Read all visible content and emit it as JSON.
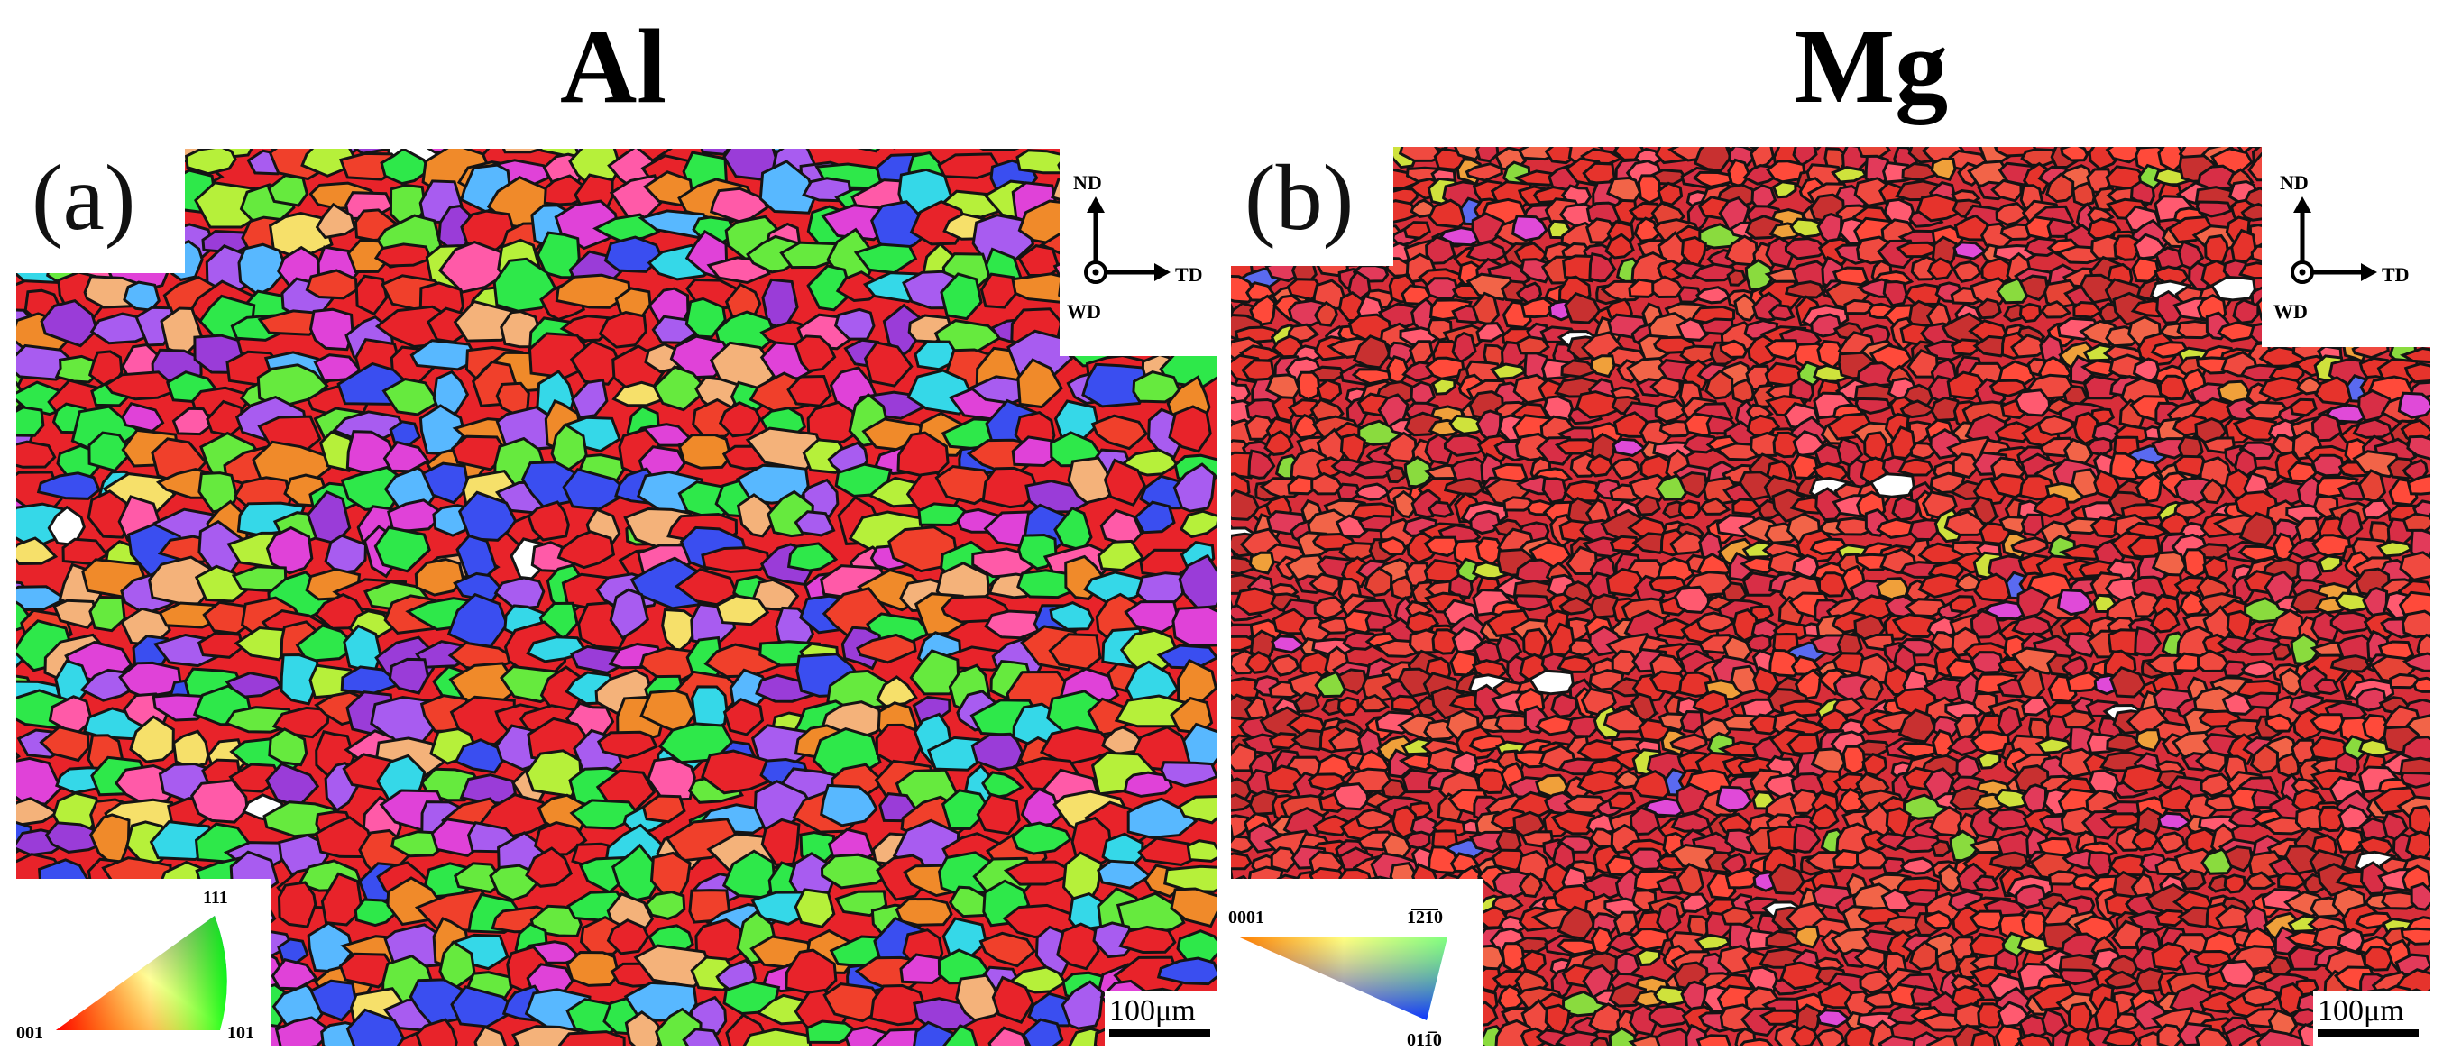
{
  "panels": [
    {
      "id": "a",
      "title": "Al",
      "label": "(a)",
      "axes": {
        "up": "ND",
        "right": "TD",
        "out": "WD"
      },
      "legend": {
        "corner_left": "001",
        "corner_right": "101",
        "corner_top": "111"
      },
      "scale_bar": "100μm",
      "colors": [
        "#e8232a",
        "#f0402b",
        "#2ee84a",
        "#66ea3e",
        "#a85cf0",
        "#e042d8",
        "#35d8e8",
        "#f08a2a",
        "#f4b27a",
        "#3a4ef0",
        "#b6f03a",
        "#ff5aa8",
        "#ffffff",
        "#f6e06a",
        "#9a3cd8",
        "#58b8ff"
      ]
    },
    {
      "id": "b",
      "title": "Mg",
      "label": "(b)",
      "axes": {
        "up": "ND",
        "right": "TD",
        "out": "WD"
      },
      "legend": {
        "corner_left": "0001",
        "corner_right_top": "1̅2̅1̅0",
        "corner_bottom": "011̅0"
      },
      "scale_bar": "100μm",
      "colors": [
        "#e6332c",
        "#f04a40",
        "#d82e46",
        "#ff4a3a",
        "#e23a5a",
        "#f26448",
        "#c83030",
        "#ff5a70",
        "#e64436",
        "#f0a03a",
        "#cfe23c",
        "#8adb3e",
        "#e04ad8",
        "#ffffff",
        "#5a6af0",
        "#f7e04a"
      ]
    }
  ]
}
